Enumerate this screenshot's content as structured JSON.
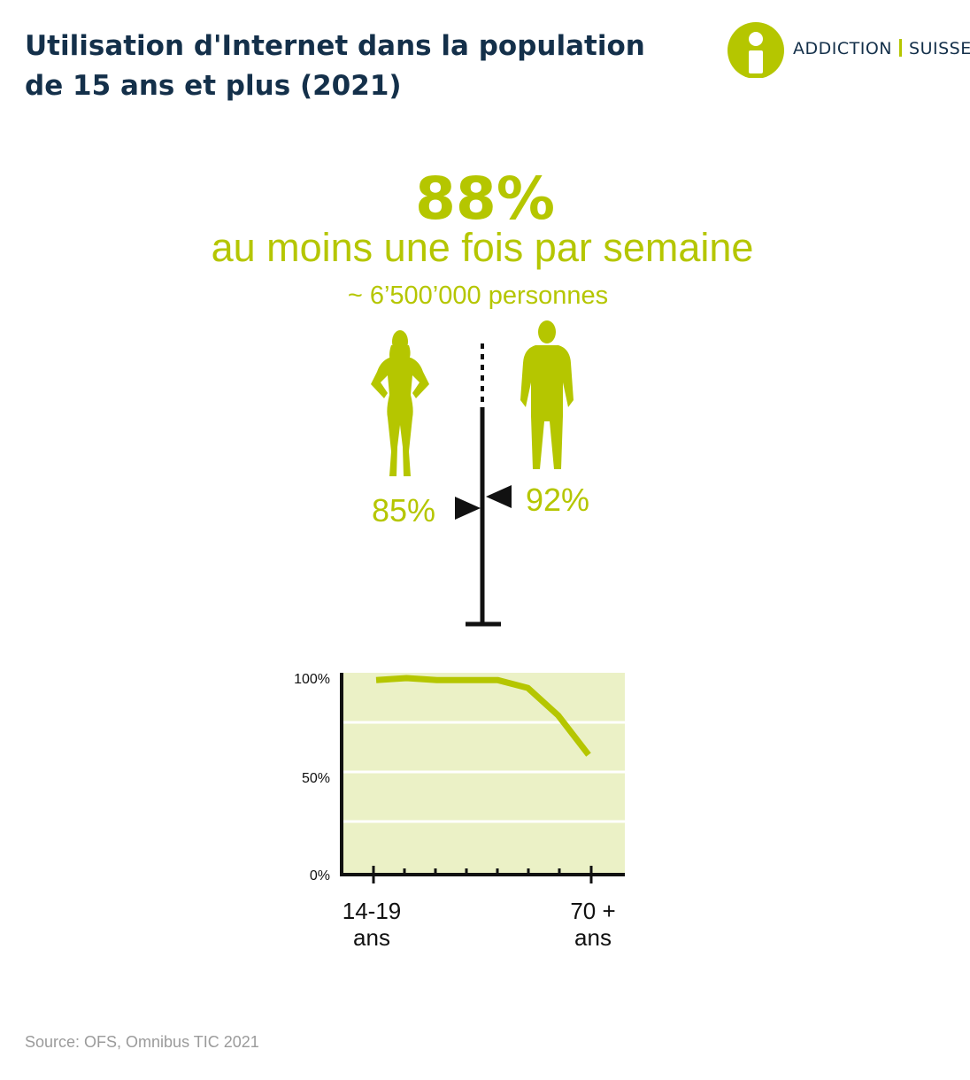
{
  "title": "Utilisation d'Internet dans la population de 15 ans et plus (2021)",
  "logo": {
    "left": "ADDICTION",
    "right": "SUISSE"
  },
  "headline": {
    "value": "88%",
    "subtitle": "au moins une fois par semaine",
    "note": "~ 6’500’000 personnes"
  },
  "gender": {
    "female_value": "85%",
    "male_value": "92%",
    "female_icon": "woman-icon",
    "male_icon": "man-icon"
  },
  "colors": {
    "accent": "#b5c600",
    "title": "#14304a",
    "plot_bg": "#ebf1c6",
    "source": "#9b9b9b"
  },
  "chart_data": {
    "type": "line",
    "title": "",
    "xlabel": "",
    "ylabel": "",
    "y_tick_labels": [
      "100%",
      "50%",
      "0%"
    ],
    "x_tick_labels": [
      {
        "line1": "14-19",
        "line2": "ans"
      },
      {
        "line1": "70 +",
        "line2": "ans"
      }
    ],
    "ylim": [
      0,
      100
    ],
    "x": [
      1,
      2,
      3,
      4,
      5,
      6,
      7,
      8
    ],
    "values": [
      99,
      100,
      99,
      99,
      99,
      95,
      81,
      61
    ],
    "grid": true
  },
  "source": "Source: OFS, Omnibus TIC 2021"
}
